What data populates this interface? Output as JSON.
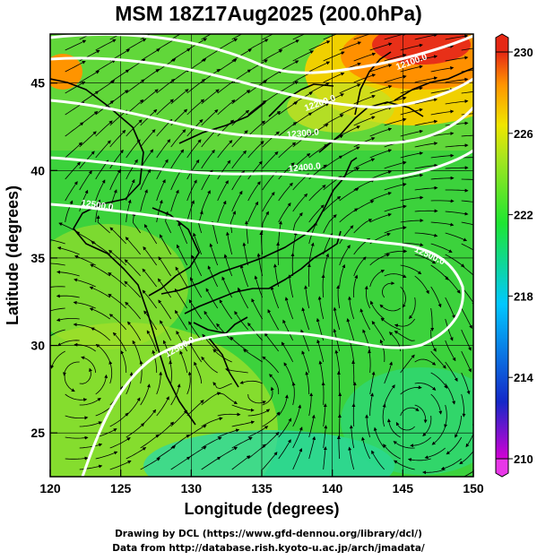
{
  "title": "MSM 18Z17Aug2025 (200.0hPa)",
  "x_axis": {
    "label": "Longitude (degrees)",
    "range": [
      120,
      150
    ],
    "ticks": [
      "120",
      "125",
      "130",
      "135",
      "140",
      "145",
      "150"
    ]
  },
  "y_axis": {
    "label": "Latitude  (degrees)",
    "range": [
      22.5,
      47.8
    ],
    "ticks": [
      "25",
      "30",
      "35",
      "40",
      "45"
    ]
  },
  "colorbar": {
    "range": [
      210,
      230
    ],
    "ticks": [
      "210",
      "214",
      "218",
      "222",
      "226",
      "230"
    ],
    "colormap": [
      "#d400d4",
      "#1428c8",
      "#00c8ff",
      "#1ee632",
      "#a8e61e",
      "#f0e600",
      "#ff9400",
      "#e62814"
    ]
  },
  "contours": [
    {
      "label": "12100.0",
      "color": "#ffffff"
    },
    {
      "label": "12200.0",
      "color": "#ffffff"
    },
    {
      "label": "12300.0",
      "color": "#ffffff"
    },
    {
      "label": "12400.0",
      "color": "#ffffff"
    },
    {
      "label": "12500.0",
      "color": "#ffffff"
    },
    {
      "label": "12500.0",
      "color": "#ffffff"
    },
    {
      "label": "12500.0",
      "color": "#ffffff"
    }
  ],
  "credits": {
    "line1": "Drawing by DCL (https://www.gfd-dennou.org/library/dcl/)",
    "line2": "Data from http://database.rish.kyoto-u.ac.jp/arch/jmadata/"
  }
}
